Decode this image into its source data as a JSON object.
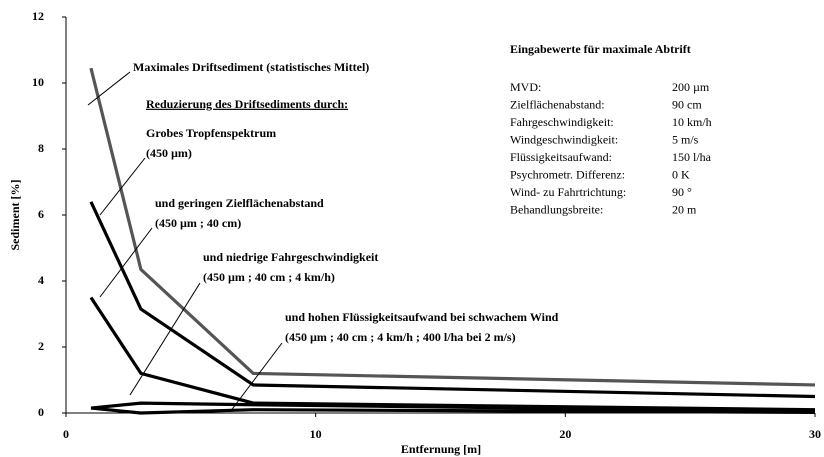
{
  "chart_data": {
    "type": "line",
    "xlabel": "Entfernung [m]",
    "ylabel": "Sediment [%]",
    "xlim": [
      0,
      30
    ],
    "xticks": [
      0,
      10,
      20,
      30
    ],
    "ylim": [
      0,
      12
    ],
    "yticks": [
      0,
      2,
      4,
      6,
      8,
      10,
      12
    ],
    "heading": "Reduzierung des Driftsediments durch:",
    "series": [
      {
        "name": "Maximales Driftsediment  (statistisches Mittel)",
        "color": "#555555",
        "x": [
          1,
          3,
          7.5,
          30
        ],
        "values": [
          10.45,
          4.35,
          1.2,
          0.85
        ]
      },
      {
        "name": "Grobes Tropfenspektrum",
        "detail": "(450 µm)",
        "color": "#000000",
        "x": [
          1,
          3,
          7.5,
          30
        ],
        "values": [
          6.4,
          3.15,
          0.85,
          0.5
        ]
      },
      {
        "name": "und geringen Zielflächenabstand",
        "detail": "(450 µm ; 40 cm)",
        "color": "#000000",
        "x": [
          1,
          3,
          7.5,
          30
        ],
        "values": [
          3.5,
          1.2,
          0.3,
          0.1
        ]
      },
      {
        "name": "und niedrige Fahrgeschwindigkeit",
        "detail": "(450 µm ; 40 cm ; 4 km/h)",
        "color": "#000000",
        "x": [
          1,
          3,
          7.5,
          30
        ],
        "values": [
          0.15,
          0.3,
          0.25,
          0.05
        ]
      },
      {
        "name": "und hohen Flüssigkeitsaufwand bei schwachem Wind",
        "detail": "(450 µm ; 40 cm ; 4 km/h ; 400 l/ha bei 2 m/s)",
        "color": "#000000",
        "x": [
          1,
          3,
          7.5,
          30
        ],
        "values": [
          0.15,
          0.0,
          0.1,
          0.02
        ]
      }
    ],
    "inputs_title": "Eingabewerte für maximale Abtrift",
    "inputs": [
      [
        "MVD:",
        "200 µm"
      ],
      [
        "Zielflächenabstand:",
        "90 cm"
      ],
      [
        "Fahrgeschwindigkeit:",
        "10 km/h"
      ],
      [
        "Windgeschwindigkeit:",
        "5 m/s"
      ],
      [
        "Flüssigkeitsaufwand:",
        "150 l/ha"
      ],
      [
        "Psychrometr. Differenz:",
        "0 K"
      ],
      [
        "Wind- zu Fahrtrichtung:",
        "90 °"
      ],
      [
        "Behandlungsbreite:",
        "20 m"
      ]
    ]
  }
}
